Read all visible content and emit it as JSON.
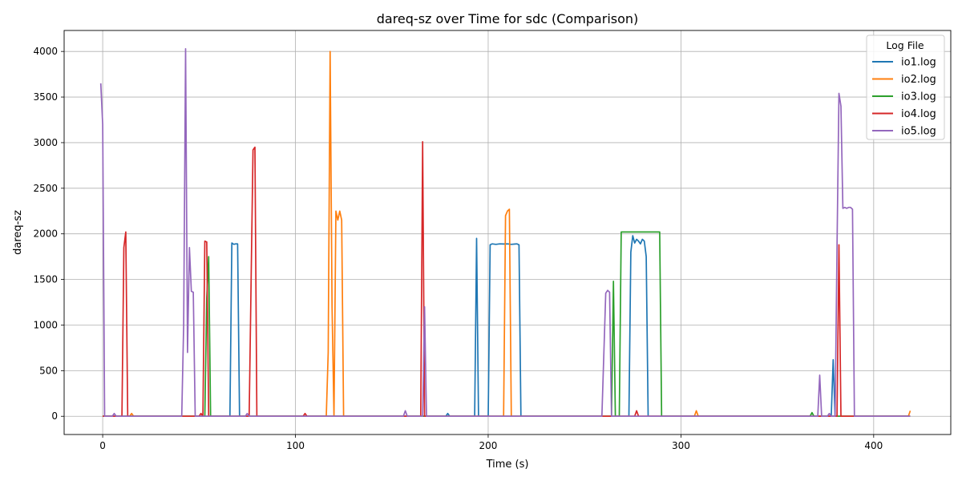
{
  "chart_data": {
    "type": "line",
    "title": "dareq-sz over Time for sdc (Comparison)",
    "xlabel": "Time (s)",
    "ylabel": "dareq-sz",
    "xlim": [
      -20,
      440
    ],
    "ylim": [
      -200,
      4230
    ],
    "xticks": [
      0,
      100,
      200,
      300,
      400
    ],
    "yticks": [
      0,
      500,
      1000,
      1500,
      2000,
      2500,
      3000,
      3500,
      4000
    ],
    "grid": true,
    "legend": {
      "title": "Log File",
      "placement": "top-right"
    },
    "series": [
      {
        "name": "io1.log",
        "color": "#1f77b4",
        "points": [
          [
            0,
            0
          ],
          [
            66,
            0
          ],
          [
            67,
            1900
          ],
          [
            68,
            1885
          ],
          [
            69,
            1890
          ],
          [
            70,
            1890
          ],
          [
            71,
            0
          ],
          [
            178,
            0
          ],
          [
            179,
            30
          ],
          [
            180,
            0
          ],
          [
            193,
            0
          ],
          [
            194,
            1950
          ],
          [
            195,
            0
          ],
          [
            200,
            0
          ],
          [
            201,
            1880
          ],
          [
            202,
            1890
          ],
          [
            204,
            1885
          ],
          [
            206,
            1890
          ],
          [
            208,
            1888
          ],
          [
            210,
            1890
          ],
          [
            212,
            1885
          ],
          [
            214,
            1888
          ],
          [
            215,
            1890
          ],
          [
            216,
            1880
          ],
          [
            217,
            0
          ],
          [
            273,
            0
          ],
          [
            274,
            1800
          ],
          [
            275,
            1980
          ],
          [
            276,
            1900
          ],
          [
            277,
            1940
          ],
          [
            278,
            1920
          ],
          [
            279,
            1890
          ],
          [
            280,
            1940
          ],
          [
            281,
            1920
          ],
          [
            282,
            1750
          ],
          [
            283,
            0
          ],
          [
            378,
            0
          ],
          [
            379,
            620
          ],
          [
            380,
            0
          ],
          [
            419,
            0
          ]
        ]
      },
      {
        "name": "io2.log",
        "color": "#ff7f0e",
        "points": [
          [
            0,
            0
          ],
          [
            14,
            0
          ],
          [
            15,
            30
          ],
          [
            16,
            0
          ],
          [
            116,
            0
          ],
          [
            117,
            700
          ],
          [
            118,
            4000
          ],
          [
            119,
            1200
          ],
          [
            120,
            0
          ],
          [
            121,
            2250
          ],
          [
            122,
            2150
          ],
          [
            123,
            2250
          ],
          [
            124,
            2150
          ],
          [
            125,
            0
          ],
          [
            208,
            0
          ],
          [
            209,
            2200
          ],
          [
            210,
            2250
          ],
          [
            211,
            2270
          ],
          [
            212,
            0
          ],
          [
            307,
            0
          ],
          [
            308,
            60
          ],
          [
            309,
            0
          ],
          [
            418,
            0
          ],
          [
            419,
            60
          ]
        ]
      },
      {
        "name": "io3.log",
        "color": "#2ca02c",
        "points": [
          [
            0,
            0
          ],
          [
            53,
            0
          ],
          [
            54,
            1300
          ],
          [
            55,
            1750
          ],
          [
            56,
            0
          ],
          [
            264,
            0
          ],
          [
            265,
            1480
          ],
          [
            266,
            0
          ],
          [
            268,
            0
          ],
          [
            269,
            2020
          ],
          [
            289,
            2020
          ],
          [
            290,
            0
          ],
          [
            367,
            0
          ],
          [
            368,
            40
          ],
          [
            369,
            0
          ],
          [
            419,
            0
          ]
        ]
      },
      {
        "name": "io4.log",
        "color": "#d62728",
        "points": [
          [
            0,
            0
          ],
          [
            10,
            0
          ],
          [
            11,
            1850
          ],
          [
            12,
            2020
          ],
          [
            13,
            0
          ],
          [
            50,
            0
          ],
          [
            51,
            30
          ],
          [
            52,
            0
          ],
          [
            53,
            1920
          ],
          [
            54,
            1910
          ],
          [
            55,
            0
          ],
          [
            76,
            0
          ],
          [
            78,
            2920
          ],
          [
            79,
            2950
          ],
          [
            80,
            0
          ],
          [
            104,
            0
          ],
          [
            105,
            30
          ],
          [
            106,
            0
          ],
          [
            165,
            0
          ],
          [
            166,
            3010
          ],
          [
            167,
            0
          ],
          [
            276,
            0
          ],
          [
            277,
            60
          ],
          [
            278,
            0
          ],
          [
            381,
            0
          ],
          [
            382,
            1880
          ],
          [
            383,
            0
          ],
          [
            419,
            0
          ]
        ]
      },
      {
        "name": "io5.log",
        "color": "#9467bd",
        "points": [
          [
            -1,
            3650
          ],
          [
            0,
            3200
          ],
          [
            1,
            0
          ],
          [
            5,
            0
          ],
          [
            6,
            30
          ],
          [
            7,
            0
          ],
          [
            41,
            0
          ],
          [
            42,
            1000
          ],
          [
            43,
            4030
          ],
          [
            44,
            700
          ],
          [
            45,
            1850
          ],
          [
            46,
            1370
          ],
          [
            47,
            1360
          ],
          [
            48,
            0
          ],
          [
            74,
            0
          ],
          [
            75,
            30
          ],
          [
            76,
            0
          ],
          [
            156,
            0
          ],
          [
            157,
            60
          ],
          [
            158,
            0
          ],
          [
            166,
            0
          ],
          [
            167,
            1200
          ],
          [
            168,
            0
          ],
          [
            259,
            0
          ],
          [
            261,
            1350
          ],
          [
            262,
            1380
          ],
          [
            263,
            1360
          ],
          [
            264,
            0
          ],
          [
            371,
            0
          ],
          [
            372,
            450
          ],
          [
            373,
            0
          ],
          [
            376,
            0
          ],
          [
            377,
            30
          ],
          [
            378,
            0
          ],
          [
            380,
            0
          ],
          [
            381,
            1850
          ],
          [
            382,
            3540
          ],
          [
            383,
            3400
          ],
          [
            384,
            2280
          ],
          [
            385,
            2290
          ],
          [
            386,
            2280
          ],
          [
            387,
            2290
          ],
          [
            388,
            2290
          ],
          [
            389,
            2270
          ],
          [
            390,
            0
          ],
          [
            419,
            0
          ]
        ]
      }
    ]
  }
}
